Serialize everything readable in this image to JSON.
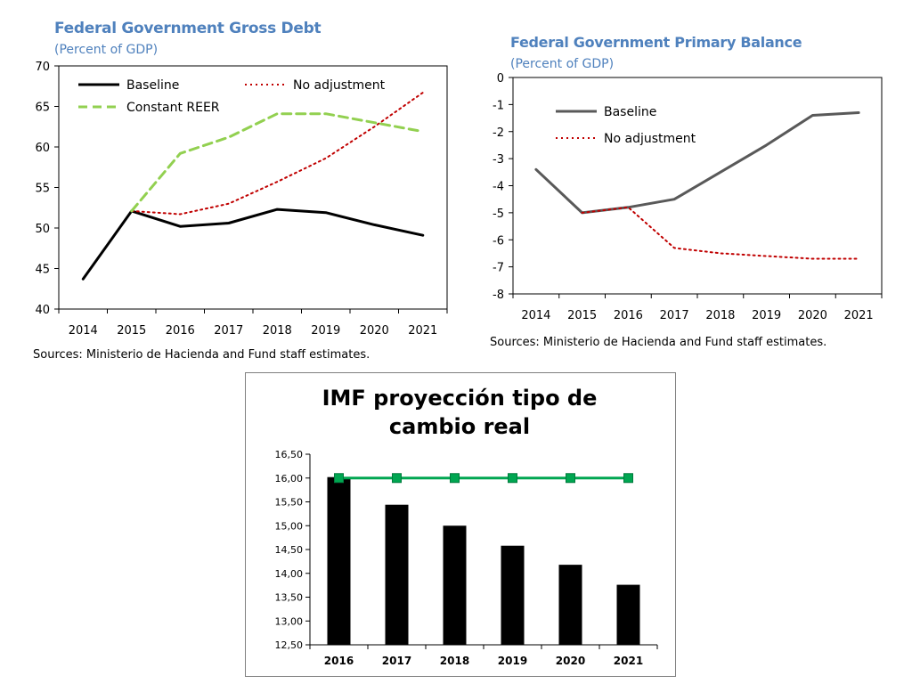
{
  "chart_data": [
    {
      "type": "line",
      "title": "Federal Government Gross Debt",
      "subtitle": "(Percent of GDP)",
      "x": [
        "2014",
        "2015",
        "2016",
        "2017",
        "2018",
        "2019",
        "2020",
        "2021"
      ],
      "ylim": [
        40,
        70
      ],
      "yticks": [
        "70",
        "65",
        "60",
        "55",
        "50",
        "45",
        "40"
      ],
      "legend_position": "top",
      "series": [
        {
          "name": "Baseline",
          "style": "solid",
          "color": "#000000",
          "values": [
            43.7,
            52.1,
            50.2,
            50.6,
            52.3,
            51.9,
            50.4,
            49.1
          ]
        },
        {
          "name": "No adjustment",
          "style": "dotted",
          "color": "#c00000",
          "values": [
            null,
            52.1,
            51.7,
            53.0,
            55.7,
            58.6,
            62.5,
            66.7
          ]
        },
        {
          "name": "Constant REER",
          "style": "dashed",
          "color": "#92d050",
          "values": [
            null,
            52.1,
            59.2,
            61.2,
            64.1,
            64.1,
            63.0,
            61.9
          ]
        }
      ],
      "source": "Sources: Ministerio de Hacienda and Fund staff estimates."
    },
    {
      "type": "line",
      "title": "Federal Government Primary Balance",
      "subtitle": "(Percent of GDP)",
      "x": [
        "2014",
        "2015",
        "2016",
        "2017",
        "2018",
        "2019",
        "2020",
        "2021"
      ],
      "ylim": [
        -8,
        0
      ],
      "yticks": [
        "0",
        "-1",
        "-2",
        "-3",
        "-4",
        "-5",
        "-6",
        "-7",
        "-8"
      ],
      "legend_position": "top-left",
      "series": [
        {
          "name": "Baseline",
          "style": "solid",
          "color": "#595959",
          "values": [
            -3.4,
            -5.0,
            -4.8,
            -4.5,
            -3.5,
            -2.5,
            -1.4,
            -1.3
          ]
        },
        {
          "name": "No adjustment",
          "style": "dotted",
          "color": "#c00000",
          "values": [
            null,
            -5.0,
            -4.8,
            -6.3,
            -6.5,
            -6.6,
            -6.7,
            -6.7
          ]
        }
      ],
      "source": "Sources: Ministerio de Hacienda and Fund staff estimates."
    },
    {
      "type": "bar",
      "title": "IMF proyección tipo de cambio real",
      "categories": [
        "2016",
        "2017",
        "2018",
        "2019",
        "2020",
        "2021"
      ],
      "ylim": [
        12.5,
        16.5
      ],
      "yticks": [
        "16,50",
        "16,00",
        "15,50",
        "15,00",
        "14,50",
        "14,00",
        "13,50",
        "13,00",
        "12,50"
      ],
      "series": [
        {
          "type": "bar",
          "color": "#000000",
          "values": [
            16.02,
            15.44,
            15.0,
            14.58,
            14.18,
            13.76
          ]
        },
        {
          "type": "line",
          "color": "#00a651",
          "marker": "square",
          "values": [
            16.0,
            16.0,
            16.0,
            16.0,
            16.0,
            16.0
          ]
        }
      ]
    }
  ]
}
